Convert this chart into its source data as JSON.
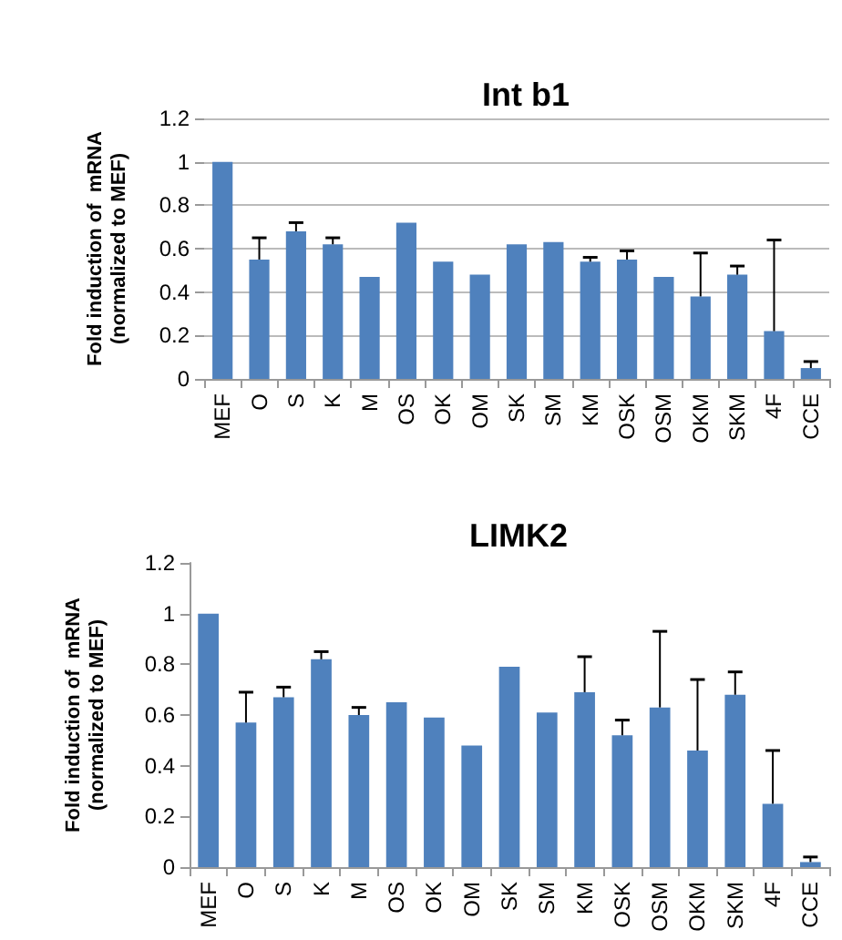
{
  "chart_data": [
    {
      "type": "bar",
      "title": "Int b1",
      "ylabel": "Fold induction of  mRNA\n(normalized to MEF)",
      "categories": [
        "MEF",
        "O",
        "S",
        "K",
        "M",
        "OS",
        "OK",
        "OM",
        "SK",
        "SM",
        "KM",
        "OSK",
        "OSM",
        "OKM",
        "SKM",
        "4F",
        "CCE"
      ],
      "values": [
        1,
        0.55,
        0.68,
        0.62,
        0.47,
        0.72,
        0.54,
        0.48,
        0.62,
        0.63,
        0.54,
        0.55,
        0.47,
        0.38,
        0.48,
        0.22,
        0.05
      ],
      "errors": [
        null,
        [
          0.55,
          0.65
        ],
        [
          0.68,
          0.72
        ],
        [
          0.62,
          0.65
        ],
        null,
        null,
        null,
        null,
        null,
        null,
        [
          0.54,
          0.56
        ],
        [
          0.55,
          0.59
        ],
        null,
        [
          0.38,
          0.58
        ],
        [
          0.48,
          0.52
        ],
        [
          0.22,
          0.64
        ],
        [
          0.05,
          0.08
        ]
      ],
      "color": "#4f81bd",
      "ylim": [
        0,
        1.2
      ],
      "yticks": [
        0,
        0.2,
        0.4,
        0.6,
        0.8,
        1,
        1.2
      ],
      "grid": "y"
    },
    {
      "type": "bar",
      "title": "LIMK2",
      "ylabel": "Fold induction of  mRNA\n(normalized to MEF)",
      "categories": [
        "MEF",
        "O",
        "S",
        "K",
        "M",
        "OS",
        "OK",
        "OM",
        "SK",
        "SM",
        "KM",
        "OSK",
        "OSM",
        "OKM",
        "SKM",
        "4F",
        "CCE"
      ],
      "values": [
        1,
        0.57,
        0.67,
        0.82,
        0.6,
        0.65,
        0.59,
        0.48,
        0.79,
        0.61,
        0.69,
        0.52,
        0.63,
        0.46,
        0.68,
        0.25,
        0.02
      ],
      "errors": [
        null,
        [
          0.57,
          0.69
        ],
        [
          0.67,
          0.71
        ],
        [
          0.82,
          0.85
        ],
        [
          0.6,
          0.63
        ],
        null,
        null,
        null,
        null,
        null,
        [
          0.69,
          0.83
        ],
        [
          0.52,
          0.58
        ],
        [
          0.63,
          0.93
        ],
        [
          0.46,
          0.74
        ],
        [
          0.68,
          0.77
        ],
        [
          0.25,
          0.46
        ],
        [
          0.02,
          0.04
        ]
      ],
      "color": "#4f81bd",
      "ylim": [
        0,
        1.2
      ],
      "yticks": [
        0,
        0.2,
        0.4,
        0.6,
        0.8,
        1,
        1.2
      ]
    }
  ]
}
